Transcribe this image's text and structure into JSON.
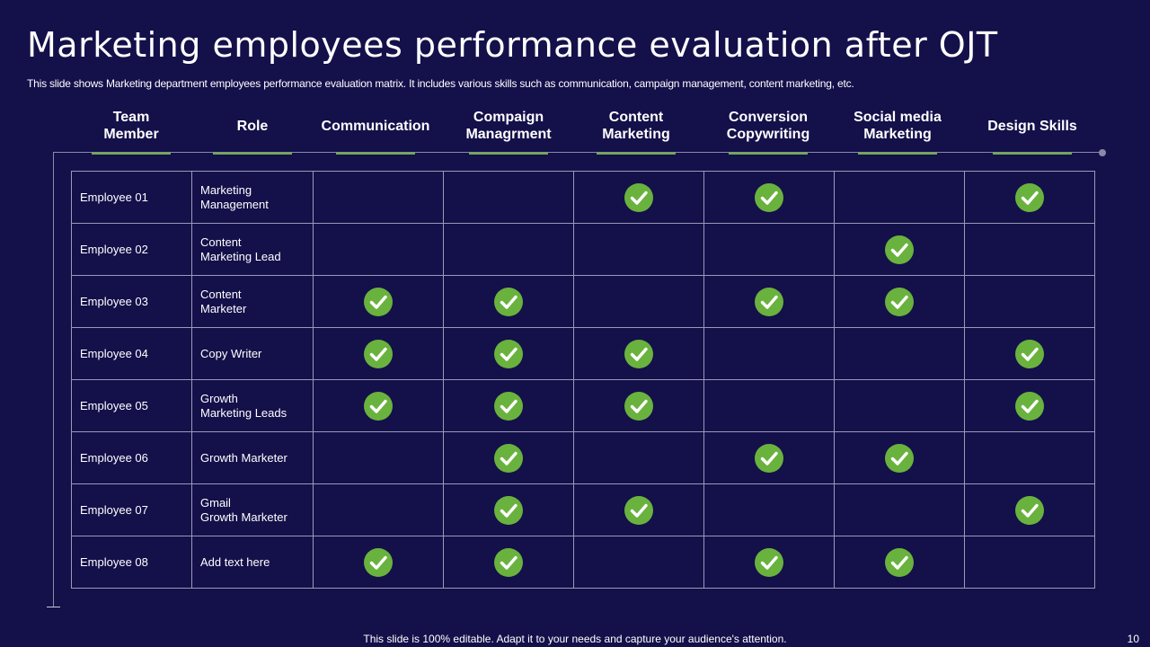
{
  "title": "Marketing employees performance evaluation after OJT",
  "subtitle": "This slide shows Marketing department employees performance evaluation matrix. It includes various skills such as communication, campaign management, content marketing, etc.",
  "headers": [
    "Team\nMember",
    "Role",
    "Communication",
    "Compaign\nManagrment",
    "Content\nMarketing",
    "Conversion\nCopywriting",
    "Social media\nMarketing",
    "Design Skills"
  ],
  "rows": [
    {
      "employee": "Employee 01",
      "role": "Marketing\nManagement",
      "skills": [
        false,
        false,
        true,
        true,
        false,
        true
      ]
    },
    {
      "employee": "Employee 02",
      "role": "Content\nMarketing Lead",
      "skills": [
        false,
        false,
        false,
        false,
        true,
        false
      ]
    },
    {
      "employee": "Employee 03",
      "role": "Content\nMarketer",
      "skills": [
        true,
        true,
        false,
        true,
        true,
        false
      ]
    },
    {
      "employee": "Employee 04",
      "role": "Copy Writer",
      "skills": [
        true,
        true,
        true,
        false,
        false,
        true
      ]
    },
    {
      "employee": "Employee 05",
      "role": "Growth\nMarketing Leads",
      "skills": [
        true,
        true,
        true,
        false,
        false,
        true
      ]
    },
    {
      "employee": "Employee 06",
      "role": "Growth Marketer",
      "skills": [
        false,
        true,
        false,
        true,
        true,
        false
      ]
    },
    {
      "employee": "Employee 07",
      "role": "Gmail\nGrowth Marketer",
      "skills": [
        false,
        true,
        true,
        false,
        false,
        true
      ]
    },
    {
      "employee": "Employee 08",
      "role": "Add text here",
      "skills": [
        true,
        true,
        false,
        true,
        true,
        false
      ]
    }
  ],
  "footer": "This slide is 100% editable. Adapt it to your needs and capture your audience's attention.",
  "page_number": "10",
  "colors": {
    "background": "#14104a",
    "accent": "#6ab23e",
    "grid": "#9a9ab8"
  }
}
